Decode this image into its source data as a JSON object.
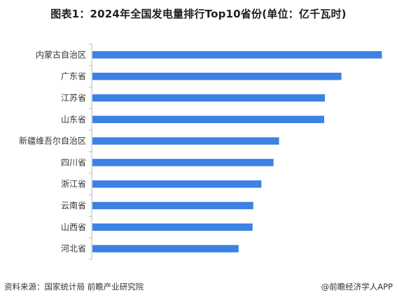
{
  "header": {
    "title": "图表1：2024年全国发电量排行Top10省份(单位：亿千瓦时)"
  },
  "footer": {
    "source": "资料来源：国家统计局 前瞻产业研究院",
    "brand": "@前瞻经济学人APP"
  },
  "chart_data": {
    "type": "bar",
    "orientation": "horizontal",
    "title": "图表1：2024年全国发电量排行Top10省份(单位：亿千瓦时)",
    "categories": [
      "内蒙古自治区",
      "广东省",
      "江苏省",
      "山东省",
      "新疆维吾尔自治区",
      "四川省",
      "浙江省",
      "云南省",
      "山西省",
      "河北省"
    ],
    "values": [
      7900,
      6800,
      6350,
      6330,
      5100,
      4950,
      4620,
      4400,
      4380,
      4000
    ],
    "xlim": [
      0,
      7950
    ],
    "bar_color": "#3b82e3",
    "grid": false,
    "legend": "none"
  }
}
